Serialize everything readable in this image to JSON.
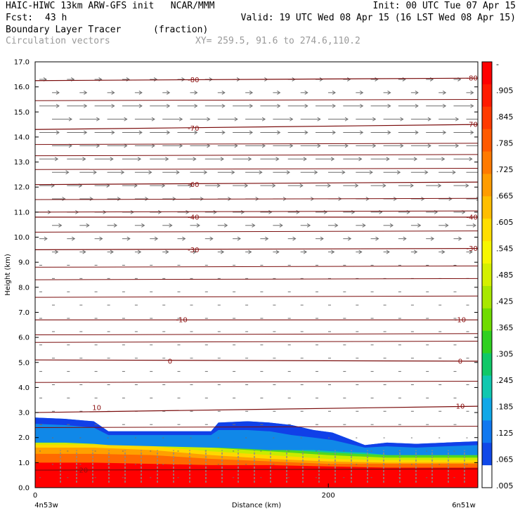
{
  "header": {
    "title_left": "HAIC-HIWC 13km ARW-GFS init   NCAR/MMM",
    "init": "Init: 00 UTC Tue 07 Apr 15",
    "fcst_label": "Fcst:",
    "fcst_value": "43 h",
    "valid": "Valid: 19 UTC Wed 08 Apr 15 (16 LST Wed 08 Apr 15)",
    "field_name": "Boundary Layer Tracer",
    "field_units": "(fraction)",
    "vectors_label": "Circulation vectors",
    "xy_range": "XY= 259.5, 91.6 to 274.6,110.2"
  },
  "chart_data": {
    "type": "heatmap",
    "xlabel": "Distance (km)",
    "ylabel": "Height (km)",
    "xlim": [
      0,
      302
    ],
    "ylim": [
      0.0,
      17.0
    ],
    "x_ticks": [
      {
        "value": 0,
        "label": "0"
      },
      {
        "value": 200,
        "label": "200"
      }
    ],
    "x_end_labels": {
      "left": "4n53w",
      "right": "6n51w"
    },
    "y_ticks": [
      "0.0",
      "1.0",
      "2.0",
      "3.0",
      "4.0",
      "5.0",
      "6.0",
      "7.0",
      "8.0",
      "9.0",
      "10.0",
      "11.0",
      "12.0",
      "13.0",
      "14.0",
      "15.0",
      "16.0",
      "17.0"
    ],
    "colorbar": {
      "labels": [
        "-",
        ".905",
        ".845",
        ".785",
        ".725",
        ".665",
        ".605",
        ".545",
        ".485",
        ".425",
        ".365",
        ".305",
        ".245",
        ".185",
        ".125",
        ".065",
        ".005"
      ],
      "colors": [
        "#ff0000",
        "#ff1a00",
        "#ff3a00",
        "#ff5a00",
        "#ff7a00",
        "#ff9c00",
        "#ffbe00",
        "#ffde00",
        "#f6f600",
        "#d4f000",
        "#a8e800",
        "#70dc00",
        "#30d020",
        "#10c868",
        "#10c8b0",
        "#10a8e8",
        "#1078f0",
        "#1048e8",
        "#ffffff"
      ]
    },
    "tracer_layers": [
      {
        "level": 0.95,
        "color": "#ff0000",
        "x": [
          0,
          40,
          80,
          120,
          160,
          200,
          240,
          302
        ],
        "top": [
          1.0,
          1.0,
          0.95,
          0.9,
          0.9,
          0.85,
          0.8,
          0.8
        ]
      },
      {
        "level": 0.8,
        "color": "#ff6a00",
        "x": [
          0,
          40,
          80,
          120,
          160,
          200,
          240,
          302
        ],
        "top": [
          1.35,
          1.35,
          1.3,
          1.15,
          1.05,
          0.95,
          0.95,
          0.95
        ]
      },
      {
        "level": 0.65,
        "color": "#ffa000",
        "x": [
          0,
          40,
          80,
          120,
          160,
          200,
          240,
          302
        ],
        "top": [
          1.6,
          1.6,
          1.5,
          1.3,
          1.15,
          1.05,
          1.0,
          1.0
        ]
      },
      {
        "level": 0.5,
        "color": "#ffd800",
        "x": [
          0,
          40,
          80,
          120,
          160,
          200,
          240,
          302
        ],
        "top": [
          1.72,
          1.72,
          1.65,
          1.45,
          1.3,
          1.15,
          1.1,
          1.1
        ]
      },
      {
        "level": 0.35,
        "color": "#c8ec00",
        "x": [
          0,
          40,
          80,
          120,
          160,
          200,
          240,
          302
        ],
        "top": [
          1.8,
          1.8,
          1.75,
          1.6,
          1.45,
          1.3,
          1.2,
          1.2
        ]
      },
      {
        "level": 0.2,
        "color": "#50d820",
        "x": [
          0,
          40,
          80,
          120,
          160,
          200,
          240,
          302
        ],
        "top": [
          1.85,
          1.85,
          1.8,
          1.7,
          1.55,
          1.4,
          1.3,
          1.3
        ]
      },
      {
        "level": 0.1,
        "color": "#10c8a0",
        "x": [
          0,
          40,
          80,
          120,
          160,
          200,
          240,
          302
        ],
        "top": [
          1.95,
          1.95,
          1.9,
          1.8,
          1.68,
          1.5,
          1.4,
          1.4
        ]
      }
    ],
    "blue_layers": [
      {
        "level": 0.065,
        "color": "#1088e8",
        "x": [
          0,
          20,
          40,
          50,
          120,
          125,
          145,
          160,
          175,
          190,
          203,
          225,
          240,
          260,
          280,
          302
        ],
        "top": [
          2.8,
          2.75,
          2.65,
          2.25,
          2.25,
          2.6,
          2.65,
          2.6,
          2.5,
          2.3,
          2.2,
          1.7,
          1.8,
          1.75,
          1.8,
          1.85
        ],
        "bottom": [
          1.8,
          1.8,
          1.75,
          1.7,
          1.6,
          1.6,
          1.55,
          1.5,
          1.5,
          1.5,
          1.45,
          1.4,
          1.3,
          1.3,
          1.3,
          1.3
        ]
      },
      {
        "level": 0.005,
        "color": "#1040e8",
        "x": [
          0,
          20,
          40,
          50,
          120,
          125,
          145,
          160,
          175,
          190,
          203,
          225,
          240,
          260,
          280,
          302
        ],
        "top": [
          2.8,
          2.75,
          2.65,
          2.25,
          2.25,
          2.6,
          2.65,
          2.6,
          2.5,
          2.3,
          2.2,
          1.7,
          1.8,
          1.75,
          1.8,
          1.85
        ],
        "bottom": [
          2.55,
          2.5,
          2.4,
          2.1,
          2.1,
          2.3,
          2.3,
          2.25,
          2.1,
          2.0,
          1.9,
          1.6,
          1.65,
          1.6,
          1.65,
          1.7
        ]
      }
    ],
    "temperature_contours": [
      {
        "label": "-80",
        "x": [
          0,
          302
        ],
        "y": [
          16.25,
          16.35
        ],
        "label_pos": [
          [
            "108",
            16.28
          ],
          [
            "298",
            16.35
          ]
        ]
      },
      {
        "label": "-70",
        "x": [
          0,
          302
        ],
        "y": [
          14.3,
          14.5
        ],
        "label_pos": [
          [
            "108",
            14.35
          ],
          [
            "298",
            14.5
          ]
        ]
      },
      {
        "label": "-60",
        "x": [
          0,
          302
        ],
        "y": [
          12.1,
          12.2
        ],
        "label_pos": [
          [
            "108",
            12.1
          ]
        ]
      },
      {
        "label": "-40",
        "x": [
          0,
          302
        ],
        "y": [
          10.8,
          10.8
        ],
        "label_pos": [
          [
            "108",
            10.8
          ],
          [
            "298",
            10.8
          ]
        ]
      },
      {
        "label": "-30",
        "x": [
          0,
          302
        ],
        "y": [
          9.5,
          9.55
        ],
        "label_pos": [
          [
            "108",
            9.5
          ],
          [
            "298",
            9.55
          ]
        ]
      },
      {
        "label": "-10",
        "x": [
          0,
          302
        ],
        "y": [
          6.7,
          6.7
        ],
        "label_pos": [
          [
            "100",
            6.7
          ],
          [
            "290",
            6.7
          ]
        ]
      },
      {
        "label": "0",
        "x": [
          0,
          302
        ],
        "y": [
          5.1,
          5.05
        ],
        "label_pos": [
          [
            "92",
            5.05
          ],
          [
            "290",
            5.05
          ]
        ]
      },
      {
        "label": "10",
        "x": [
          0,
          302
        ],
        "y": [
          3.0,
          3.25
        ],
        "label_pos": [
          [
            "42",
            3.2
          ],
          [
            "290",
            3.25
          ]
        ]
      },
      {
        "label": "20",
        "x": [
          0,
          302
        ],
        "y": [
          0.7,
          0.75
        ],
        "label_pos": [
          [
            "33",
            0.7
          ]
        ]
      }
    ]
  }
}
